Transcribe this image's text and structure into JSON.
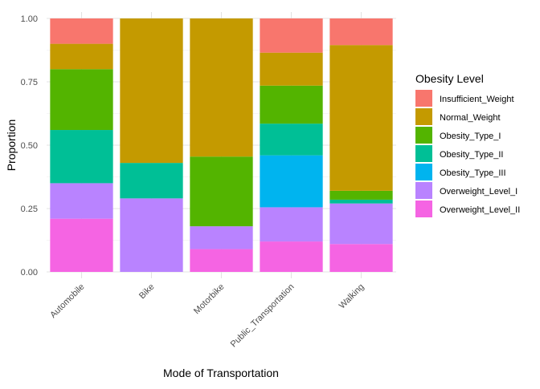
{
  "chart_data": {
    "type": "bar",
    "stacked": true,
    "xlabel": "Mode of Transportation",
    "ylabel": "Proportion",
    "ylim": [
      0,
      1
    ],
    "yticks": [
      0,
      0.25,
      0.5,
      0.75,
      1
    ],
    "ytick_labels": [
      "0.00",
      "0.25",
      "0.50",
      "0.75",
      "1.00"
    ],
    "grid": true,
    "legend_position": "right",
    "legend_title": "Obesity Level",
    "categories": [
      "Automobile",
      "Bike",
      "Motorbike",
      "Public_Transportation",
      "Walking"
    ],
    "series": [
      {
        "name": "Overweight_Level_II",
        "color": "#F564E3",
        "values": [
          0.21,
          0.0,
          0.09,
          0.12,
          0.11
        ]
      },
      {
        "name": "Overweight_Level_I",
        "color": "#B983FF",
        "values": [
          0.14,
          0.29,
          0.09,
          0.135,
          0.16
        ]
      },
      {
        "name": "Obesity_Type_III",
        "color": "#00B4EF",
        "values": [
          0.0,
          0.0,
          0.0,
          0.205,
          0.0
        ]
      },
      {
        "name": "Obesity_Type_II",
        "color": "#00BF96",
        "values": [
          0.21,
          0.14,
          0.0,
          0.125,
          0.015
        ]
      },
      {
        "name": "Obesity_Type_I",
        "color": "#53B400",
        "values": [
          0.24,
          0.0,
          0.275,
          0.15,
          0.035
        ]
      },
      {
        "name": "Normal_Weight",
        "color": "#C49A00",
        "values": [
          0.1,
          0.57,
          0.545,
          0.13,
          0.575
        ]
      },
      {
        "name": "Insufficient_Weight",
        "color": "#F8766D",
        "values": [
          0.1,
          0.0,
          0.0,
          0.135,
          0.105
        ]
      }
    ],
    "legend_order": [
      "Insufficient_Weight",
      "Normal_Weight",
      "Obesity_Type_I",
      "Obesity_Type_II",
      "Obesity_Type_III",
      "Overweight_Level_I",
      "Overweight_Level_II"
    ]
  }
}
